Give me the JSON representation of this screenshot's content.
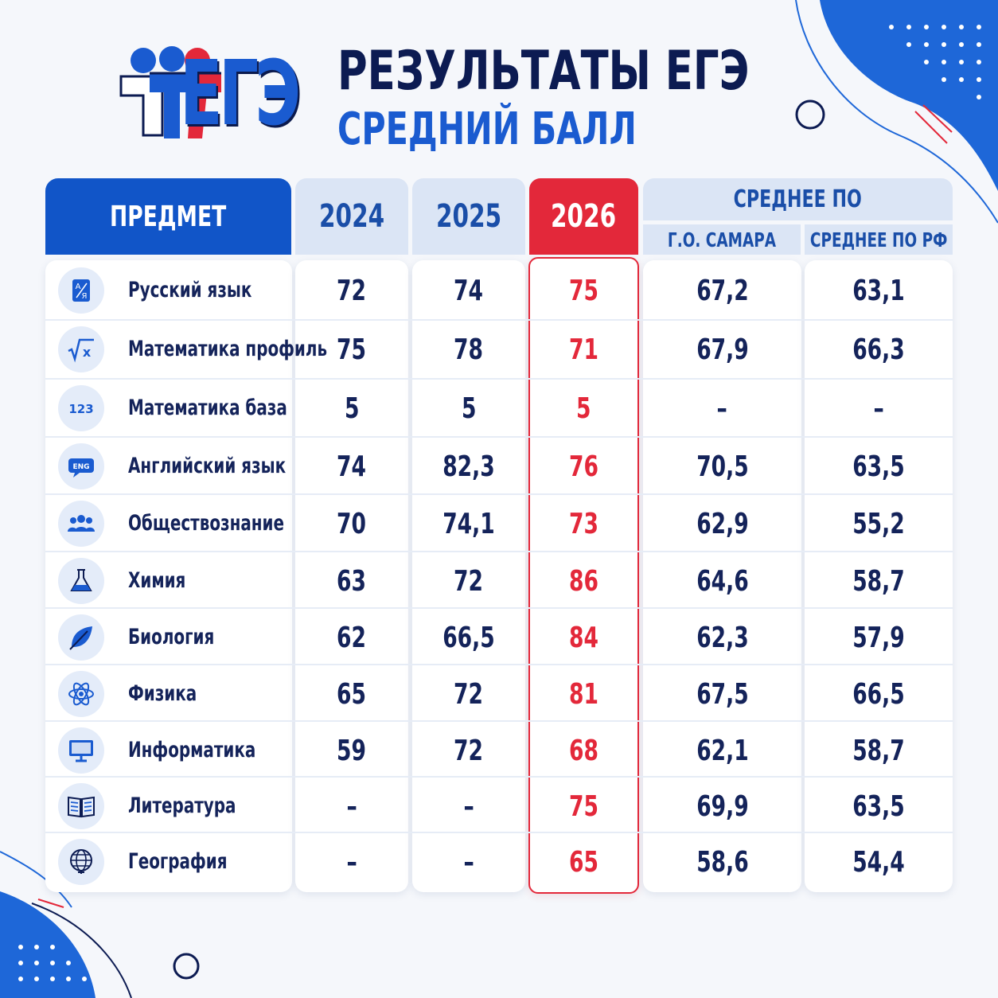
{
  "brand": {
    "logo_text": "ЕГЭ"
  },
  "header": {
    "title": "РЕЗУЛЬТАТЫ ЕГЭ",
    "subtitle": "СРЕДНИЙ БАЛЛ"
  },
  "table": {
    "columns": {
      "subject": "ПРЕДМЕТ",
      "y2024": "2024",
      "y2025": "2025",
      "y2026": "2026",
      "average_group": "СРЕДНЕЕ ПО",
      "samara": "Г.О. САМАРА",
      "russia": "СРЕДНЕЕ ПО РФ"
    },
    "rows": [
      {
        "subject": "Русский язык",
        "icon": "alphabet-icon",
        "y2024": "72",
        "y2025": "74",
        "y2026": "75",
        "samara": "67,2",
        "russia": "63,1"
      },
      {
        "subject": "Математика профиль",
        "icon": "sqrt-icon",
        "y2024": "75",
        "y2025": "78",
        "y2026": "71",
        "samara": "67,9",
        "russia": "66,3"
      },
      {
        "subject": "Математика база",
        "icon": "numbers-icon",
        "y2024": "5",
        "y2025": "5",
        "y2026": "5",
        "samara": "–",
        "russia": "–"
      },
      {
        "subject": "Английский язык",
        "icon": "eng-icon",
        "y2024": "74",
        "y2025": "82,3",
        "y2026": "76",
        "samara": "70,5",
        "russia": "63,5"
      },
      {
        "subject": "Обществознание",
        "icon": "people-icon",
        "y2024": "70",
        "y2025": "74,1",
        "y2026": "73",
        "samara": "62,9",
        "russia": "55,2"
      },
      {
        "subject": "Химия",
        "icon": "flask-icon",
        "y2024": "63",
        "y2025": "72",
        "y2026": "86",
        "samara": "64,6",
        "russia": "58,7"
      },
      {
        "subject": "Биология",
        "icon": "leaf-icon",
        "y2024": "62",
        "y2025": "66,5",
        "y2026": "84",
        "samara": "62,3",
        "russia": "57,9"
      },
      {
        "subject": "Физика",
        "icon": "atom-icon",
        "y2024": "65",
        "y2025": "72",
        "y2026": "81",
        "samara": "67,5",
        "russia": "66,5"
      },
      {
        "subject": "Информатика",
        "icon": "monitor-icon",
        "y2024": "59",
        "y2025": "72",
        "y2026": "68",
        "samara": "62,1",
        "russia": "58,7"
      },
      {
        "subject": "Литература",
        "icon": "book-icon",
        "y2024": "–",
        "y2025": "–",
        "y2026": "75",
        "samara": "69,9",
        "russia": "63,5"
      },
      {
        "subject": "География",
        "icon": "globe-icon",
        "y2024": "–",
        "y2025": "–",
        "y2026": "65",
        "samara": "58,6",
        "russia": "54,4"
      }
    ]
  },
  "colors": {
    "brand_blue": "#1155c8",
    "navy": "#0c1b52",
    "highlight_red": "#e3283a",
    "header_light": "#dbe5f5"
  }
}
